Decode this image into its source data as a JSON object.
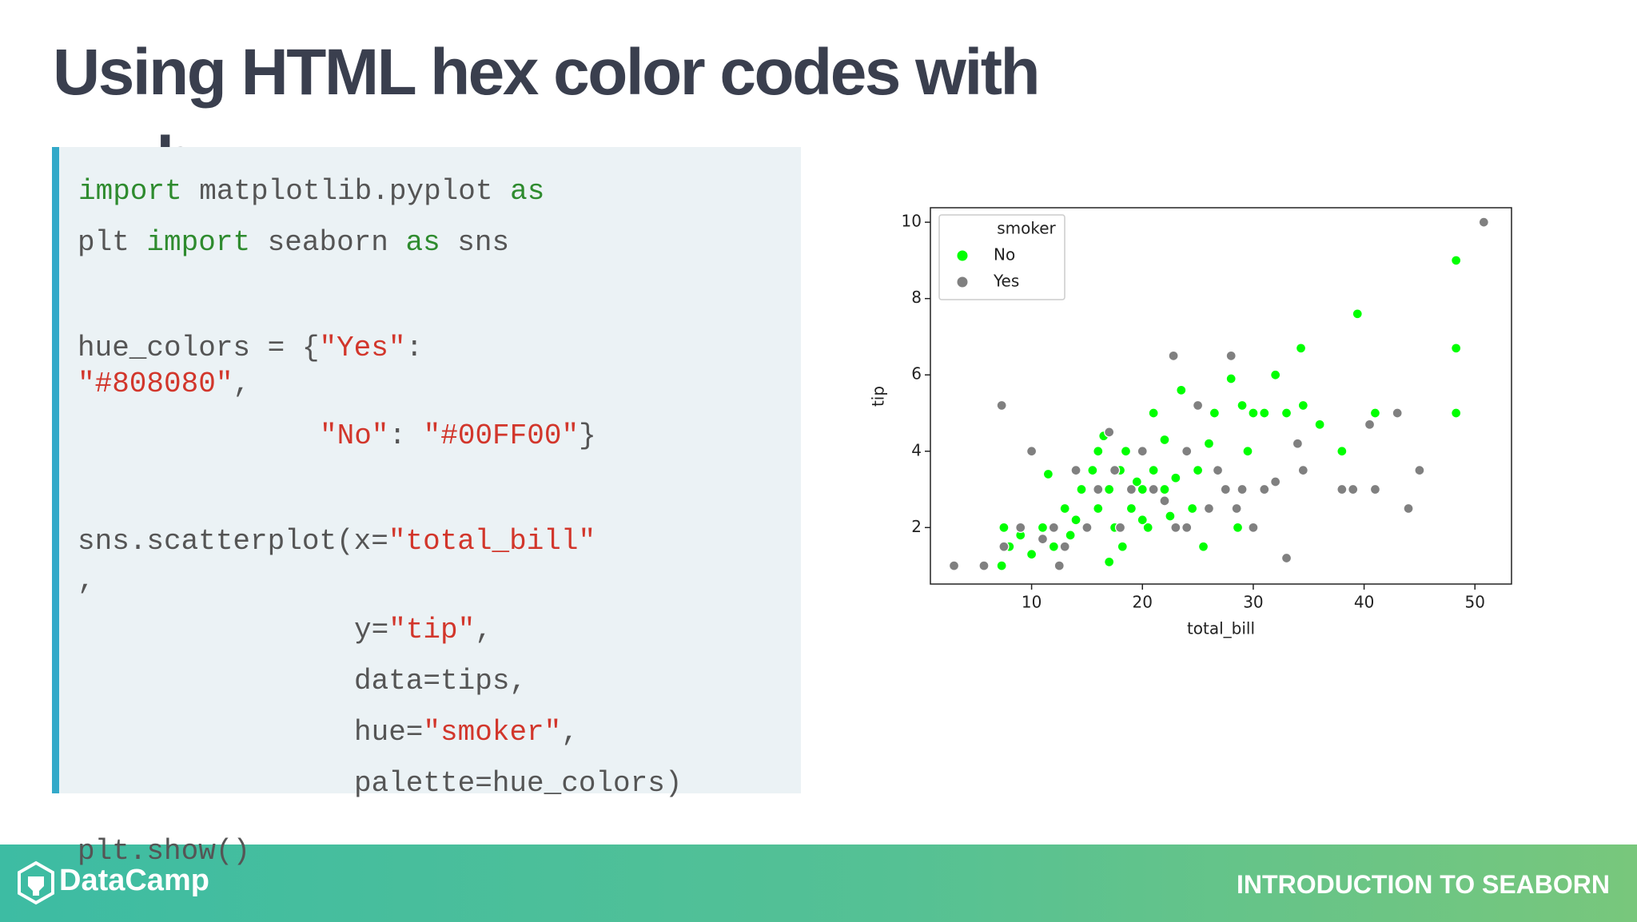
{
  "title": "Using HTML hex color codes with seaborn",
  "code": {
    "lines": [
      [
        {
          "text": "import",
          "color": "#2e8b2e"
        },
        {
          "text": " matplotlib.pyplot ",
          "color": "#555555"
        },
        {
          "text": "as",
          "color": "#2e8b2e"
        }
      ],
      [
        {
          "text": "plt ",
          "color": "#555555"
        },
        {
          "text": "import",
          "color": "#2e8b2e"
        },
        {
          "text": " seaborn ",
          "color": "#555555"
        },
        {
          "text": "as",
          "color": "#2e8b2e"
        },
        {
          "text": " sns",
          "color": "#555555"
        }
      ],
      [
        {
          "text": "hue_colors = {",
          "color": "#555555"
        },
        {
          "text": "\"Yes\"",
          "color": "#d2362b"
        },
        {
          "text": ":",
          "color": "#555555"
        }
      ],
      [
        {
          "text": "\"#808080\"",
          "color": "#d2362b"
        },
        {
          "text": ",",
          "color": "#555555"
        }
      ],
      [
        {
          "text": "\"No\"",
          "color": "#d2362b"
        },
        {
          "text": ": ",
          "color": "#555555"
        },
        {
          "text": "\"#00FF00\"",
          "color": "#d2362b"
        },
        {
          "text": "}",
          "color": "#555555"
        }
      ],
      [
        {
          "text": "sns.scatterplot(x=",
          "color": "#555555"
        },
        {
          "text": "\"total_bill\"",
          "color": "#d2362b"
        }
      ],
      [
        {
          "text": ",",
          "color": "#555555"
        }
      ],
      [
        {
          "text": "y=",
          "color": "#555555"
        },
        {
          "text": "\"tip\"",
          "color": "#d2362b"
        },
        {
          "text": ",",
          "color": "#555555"
        }
      ],
      [
        {
          "text": "data=tips,",
          "color": "#555555"
        }
      ],
      [
        {
          "text": "hue=",
          "color": "#555555"
        },
        {
          "text": "\"smoker\"",
          "color": "#d2362b"
        },
        {
          "text": ",",
          "color": "#555555"
        }
      ],
      [
        {
          "text": "palette=hue_colors)",
          "color": "#555555"
        }
      ],
      [
        {
          "text": "plt.show()",
          "color": "#555555"
        }
      ]
    ]
  },
  "chart_data": {
    "type": "scatter",
    "xlabel": "total_bill",
    "ylabel": "tip",
    "xlim": [
      0.87,
      53.3
    ],
    "ylim": [
      0.52,
      10.38
    ],
    "xticks": [
      10,
      20,
      30,
      40,
      50
    ],
    "yticks": [
      2,
      4,
      6,
      8,
      10
    ],
    "legend": {
      "title": "smoker",
      "loc": "upper left"
    },
    "series": [
      {
        "name": "No",
        "color": "#00FF00",
        "x": [
          7.3,
          7.5,
          8,
          9,
          10,
          11,
          11.5,
          12,
          13,
          13.5,
          14,
          14.5,
          15,
          15.5,
          16,
          16.5,
          17,
          17.5,
          18,
          18.2,
          18.5,
          19,
          19.5,
          20,
          20.5,
          21,
          21,
          22,
          22.5,
          23,
          23.5,
          24,
          24.5,
          25,
          25.5,
          26,
          26.5,
          28,
          28.6,
          29,
          29.5,
          30,
          31,
          32,
          33,
          34.3,
          34.5,
          36,
          38,
          39.4,
          41,
          48.3,
          48.3,
          48.3,
          17,
          20,
          16,
          22
        ],
        "y": [
          1,
          2,
          1.5,
          1.8,
          1.3,
          2,
          3.4,
          1.5,
          2.5,
          1.8,
          2.2,
          3,
          2,
          3.5,
          2.5,
          4.4,
          3,
          2,
          3.5,
          1.5,
          4,
          2.5,
          3.2,
          3,
          2,
          3.5,
          5,
          4.3,
          2.3,
          3.3,
          5.6,
          4,
          2.5,
          3.5,
          1.5,
          4.2,
          5,
          5.9,
          2,
          5.2,
          4,
          5,
          5,
          6,
          5,
          6.7,
          5.2,
          4.7,
          4,
          7.6,
          5,
          9,
          6.7,
          5,
          1.1,
          2.2,
          4,
          3
        ]
      },
      {
        "name": "Yes",
        "color": "#808080",
        "x": [
          3,
          5.7,
          7.3,
          7.5,
          9,
          10,
          11,
          12,
          12.5,
          13,
          14,
          15,
          16,
          17,
          17.5,
          18,
          19,
          20,
          21,
          22.8,
          23,
          24,
          24,
          25,
          26.8,
          27.5,
          28,
          28.5,
          29,
          30,
          31,
          32,
          33,
          34,
          34.5,
          38,
          39,
          40.5,
          41,
          43,
          44,
          45,
          50.8,
          26,
          22
        ],
        "y": [
          1,
          1,
          5.2,
          1.5,
          2,
          4,
          1.7,
          2,
          1,
          1.5,
          3.5,
          2,
          3,
          4.5,
          3.5,
          2,
          3,
          4,
          3,
          6.5,
          2,
          4,
          2,
          5.2,
          3.5,
          3,
          6.5,
          2.5,
          3,
          2,
          3,
          3.2,
          1.2,
          4.2,
          3.5,
          3,
          3,
          4.7,
          3,
          5,
          2.5,
          3.5,
          10,
          2.5,
          2.7
        ]
      }
    ]
  },
  "footer": {
    "logo": "DataCamp",
    "course": "INTRODUCTION TO SEABORN"
  }
}
